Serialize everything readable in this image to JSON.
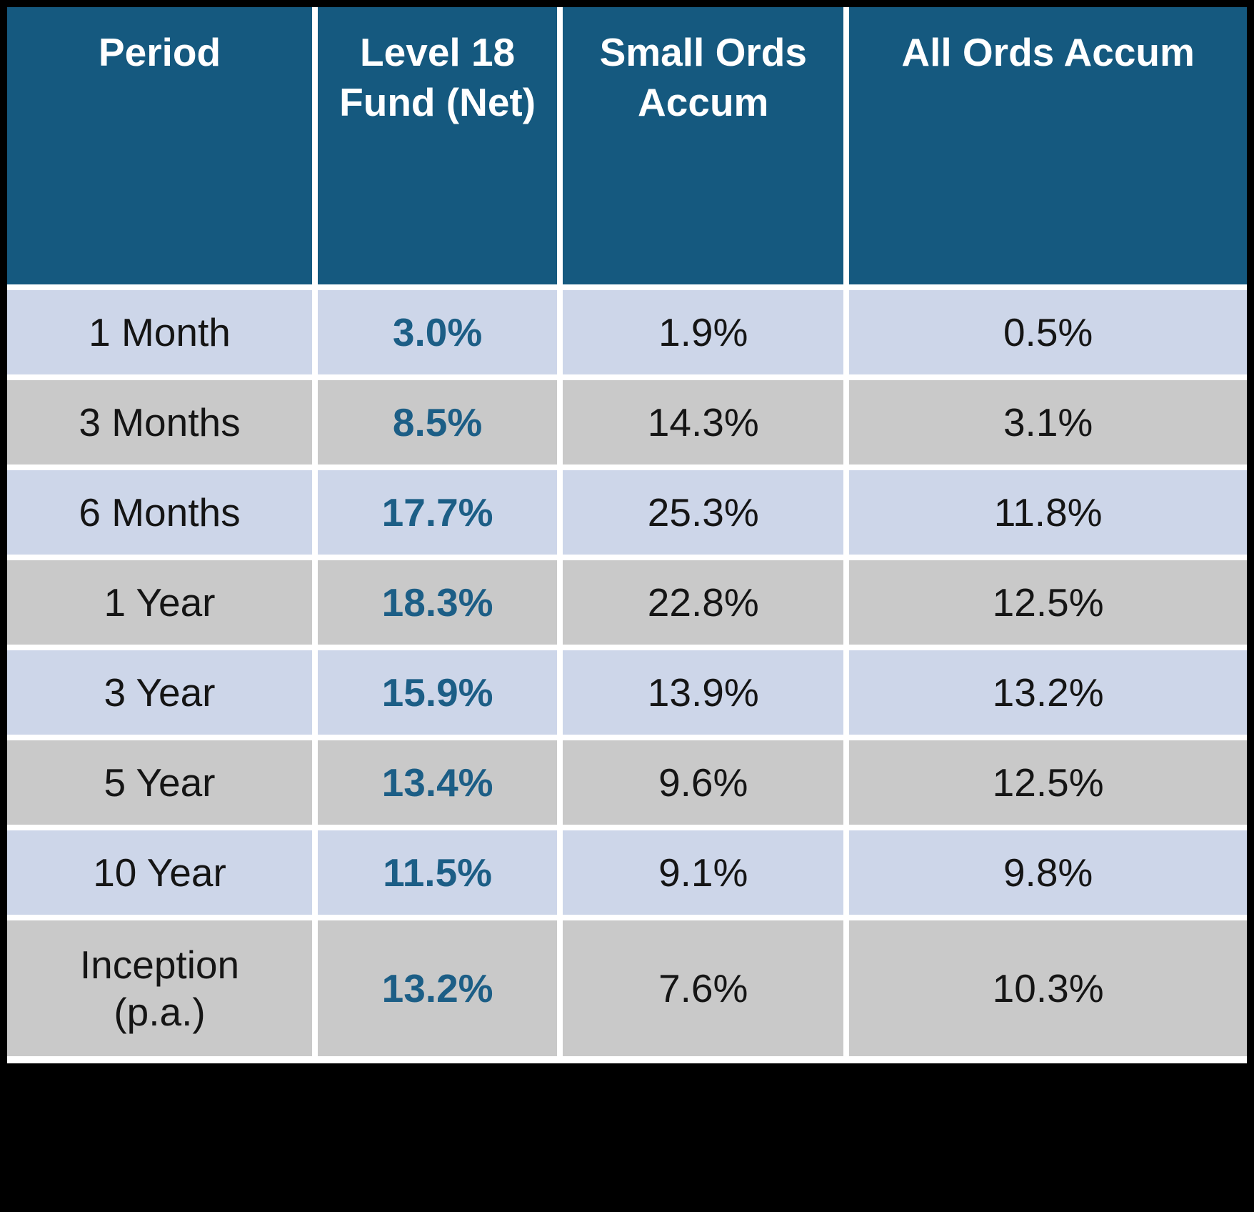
{
  "chart_data": {
    "type": "table",
    "columns": [
      "Period",
      "Level 18 Fund (Net)",
      "Small Ords Accum",
      "All Ords Accum"
    ],
    "rows": [
      {
        "period": "1 Month",
        "fund": "3.0%",
        "small_ords": "1.9%",
        "all_ords": "0.5%"
      },
      {
        "period": "3 Months",
        "fund": "8.5%",
        "small_ords": "14.3%",
        "all_ords": "3.1%"
      },
      {
        "period": "6 Months",
        "fund": "17.7%",
        "small_ords": "25.3%",
        "all_ords": "11.8%"
      },
      {
        "period": "1 Year",
        "fund": "18.3%",
        "small_ords": "22.8%",
        "all_ords": "12.5%"
      },
      {
        "period": "3 Year",
        "fund": "15.9%",
        "small_ords": "13.9%",
        "all_ords": "13.2%"
      },
      {
        "period": "5 Year",
        "fund": "13.4%",
        "small_ords": "9.6%",
        "all_ords": "12.5%"
      },
      {
        "period": "10 Year",
        "fund": "11.5%",
        "small_ords": "9.1%",
        "all_ords": "9.8%"
      },
      {
        "period": "Inception (p.a.)",
        "fund": "13.2%",
        "small_ords": "7.6%",
        "all_ords": "10.3%"
      }
    ],
    "colors": {
      "header_bg": "#15597F",
      "header_text": "#FFFFFF",
      "row_alt_blue": "#CDD6E9",
      "row_alt_gray": "#C9C9C9",
      "fund_value_text": "#1C5E86",
      "grid_lines": "#FFFFFF",
      "outer_border": "#000000"
    }
  }
}
